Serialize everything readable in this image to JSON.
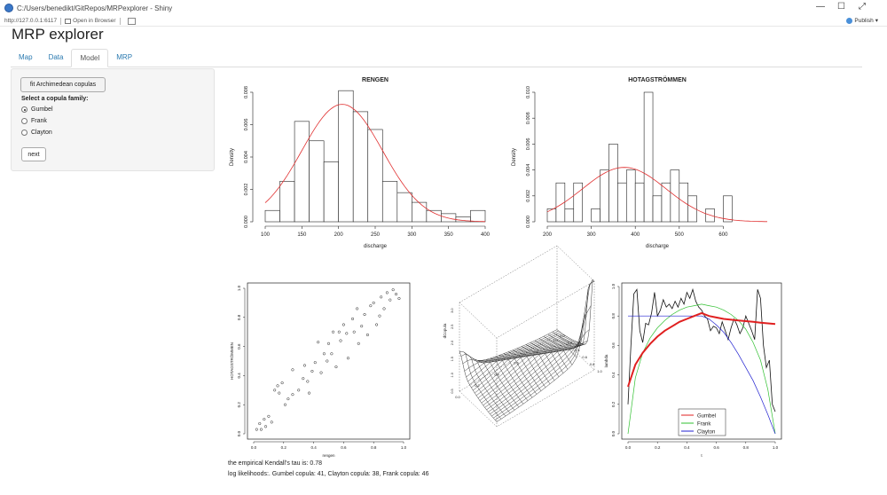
{
  "window": {
    "path": "C:/Users/benedikt/GitRepos/MRPexplorer - Shiny",
    "url": "http://127.0.0.1:6117",
    "open_in_browser": "Open in Browser",
    "publish": "Publish",
    "controls": [
      "—",
      "☐",
      "⤢"
    ]
  },
  "app": {
    "title": "MRP explorer"
  },
  "tabs": [
    {
      "label": "Map"
    },
    {
      "label": "Data"
    },
    {
      "label": "Model"
    },
    {
      "label": "MRP"
    }
  ],
  "sidebar": {
    "fit_button": "fit Archimedean copulas",
    "select_label": "Select a copula family:",
    "options": [
      "Gumbel",
      "Frank",
      "Clayton"
    ],
    "selected": "Gumbel",
    "next_button": "next"
  },
  "output": {
    "tau_text": "the empirical Kendall's tau is: 0.78",
    "loglik_text": "log likelihoods:. Gumbel copula: 41, Clayton copula: 38, Frank copula: 46"
  },
  "chart_data": [
    {
      "type": "bar",
      "title": "RENGEN",
      "xlabel": "discharge",
      "ylabel": "Density",
      "xlim": [
        100,
        400
      ],
      "ylim": [
        0,
        0.008
      ],
      "xticks": [
        100,
        150,
        200,
        250,
        300,
        350,
        400
      ],
      "yticks": [
        "0.000",
        "0.002",
        "0.004",
        "0.006",
        "0.008"
      ],
      "bin_edges": [
        100,
        120,
        140,
        160,
        180,
        200,
        220,
        240,
        260,
        280,
        300,
        320,
        340,
        360,
        380,
        400
      ],
      "values": [
        0.0007,
        0.0025,
        0.0062,
        0.005,
        0.0037,
        0.0081,
        0.0068,
        0.0057,
        0.0025,
        0.0018,
        0.0012,
        0.0007,
        0.0005,
        0.0003,
        0.0007
      ],
      "density_curve": {
        "color": "#e03030",
        "mean": 205,
        "sd": 55
      }
    },
    {
      "type": "bar",
      "title": "HOTAGSTRÖMMEN",
      "xlabel": "discharge",
      "ylabel": "Density",
      "xlim": [
        200,
        700
      ],
      "ylim": [
        0,
        0.01
      ],
      "xticks": [
        200,
        300,
        400,
        500,
        600
      ],
      "yticks": [
        "0.000",
        "0.002",
        "0.004",
        "0.006",
        "0.008",
        "0.010"
      ],
      "bin_edges": [
        200,
        220,
        240,
        260,
        280,
        300,
        320,
        340,
        360,
        380,
        400,
        420,
        440,
        460,
        480,
        500,
        520,
        540,
        560,
        580,
        600,
        620,
        640,
        660,
        680
      ],
      "values": [
        0.001,
        0.003,
        0.001,
        0.003,
        0.0,
        0.001,
        0.004,
        0.006,
        0.003,
        0.004,
        0.003,
        0.01,
        0.002,
        0.003,
        0.004,
        0.003,
        0.002,
        0.0,
        0.001,
        0.0,
        0.002,
        0.0,
        0.0,
        0.0
      ],
      "density_curve": {
        "color": "#e03030",
        "mean": 375,
        "sd": 95
      }
    },
    {
      "type": "scatter",
      "xlabel": "rengen",
      "ylabel": "HOTAGSTRÖMMEN",
      "xlim": [
        0,
        1
      ],
      "ylim": [
        0,
        1
      ],
      "xticks": [
        "0.0",
        "0.2",
        "0.4",
        "0.6",
        "0.8",
        "1.0"
      ],
      "yticks": [
        "0.0",
        "0.2",
        "0.4",
        "0.6",
        "0.8",
        "1.0"
      ],
      "points": [
        [
          0.02,
          0.03
        ],
        [
          0.04,
          0.07
        ],
        [
          0.05,
          0.03
        ],
        [
          0.07,
          0.1
        ],
        [
          0.08,
          0.05
        ],
        [
          0.1,
          0.12
        ],
        [
          0.12,
          0.08
        ],
        [
          0.14,
          0.3
        ],
        [
          0.16,
          0.33
        ],
        [
          0.17,
          0.28
        ],
        [
          0.19,
          0.35
        ],
        [
          0.21,
          0.2
        ],
        [
          0.23,
          0.24
        ],
        [
          0.26,
          0.44
        ],
        [
          0.3,
          0.3
        ],
        [
          0.33,
          0.38
        ],
        [
          0.36,
          0.36
        ],
        [
          0.37,
          0.28
        ],
        [
          0.39,
          0.43
        ],
        [
          0.41,
          0.49
        ],
        [
          0.43,
          0.63
        ],
        [
          0.45,
          0.42
        ],
        [
          0.47,
          0.55
        ],
        [
          0.49,
          0.5
        ],
        [
          0.5,
          0.62
        ],
        [
          0.52,
          0.55
        ],
        [
          0.55,
          0.46
        ],
        [
          0.57,
          0.7
        ],
        [
          0.58,
          0.64
        ],
        [
          0.6,
          0.75
        ],
        [
          0.62,
          0.69
        ],
        [
          0.63,
          0.52
        ],
        [
          0.66,
          0.79
        ],
        [
          0.67,
          0.7
        ],
        [
          0.69,
          0.86
        ],
        [
          0.7,
          0.62
        ],
        [
          0.72,
          0.74
        ],
        [
          0.74,
          0.82
        ],
        [
          0.76,
          0.68
        ],
        [
          0.78,
          0.88
        ],
        [
          0.8,
          0.9
        ],
        [
          0.82,
          0.75
        ],
        [
          0.84,
          0.81
        ],
        [
          0.85,
          0.94
        ],
        [
          0.87,
          0.86
        ],
        [
          0.89,
          0.97
        ],
        [
          0.91,
          0.92
        ],
        [
          0.93,
          0.99
        ],
        [
          0.95,
          0.96
        ],
        [
          0.97,
          0.93
        ],
        [
          0.26,
          0.27
        ],
        [
          0.34,
          0.47
        ],
        [
          0.53,
          0.7
        ]
      ]
    },
    {
      "type": "surface",
      "zlabel": "dCopula",
      "xticks": [
        "0.0",
        "0.2",
        "0.4",
        "0.6",
        "0.8",
        "1.0"
      ],
      "yticks": [
        "0.0",
        "0.2",
        "0.4",
        "0.6",
        "0.8",
        "1.0"
      ]
    },
    {
      "type": "line",
      "xlabel": "t",
      "ylabel": "lambda",
      "xlim": [
        0,
        1
      ],
      "ylim": [
        0,
        1
      ],
      "xticks": [
        "0.0",
        "0.2",
        "0.4",
        "0.6",
        "0.8",
        "1.0"
      ],
      "yticks": [
        "0.0",
        "0.2",
        "0.4",
        "0.6",
        "0.8",
        "1.0"
      ],
      "legend": {
        "placement": "bottom-center",
        "entries": [
          "Gumbel",
          "Frank",
          "Clayton"
        ]
      },
      "series": [
        {
          "name": "Gumbel",
          "color": "#e02020",
          "x": [
            0.0,
            0.05,
            0.1,
            0.15,
            0.2,
            0.25,
            0.3,
            0.35,
            0.4,
            0.45,
            0.5,
            0.55,
            0.6,
            0.65,
            0.7,
            0.75,
            0.8,
            0.85,
            0.9,
            0.95,
            1.0
          ],
          "y": [
            0.32,
            0.47,
            0.55,
            0.61,
            0.66,
            0.7,
            0.73,
            0.76,
            0.78,
            0.8,
            0.82,
            0.8,
            0.79,
            0.78,
            0.775,
            0.77,
            0.765,
            0.76,
            0.755,
            0.75,
            0.745
          ]
        },
        {
          "name": "Frank",
          "color": "#30c030",
          "x": [
            0.0,
            0.05,
            0.1,
            0.15,
            0.2,
            0.25,
            0.3,
            0.35,
            0.4,
            0.45,
            0.5,
            0.55,
            0.6,
            0.65,
            0.7,
            0.75,
            0.8,
            0.85,
            0.9,
            0.95,
            1.0
          ],
          "y": [
            0.0,
            0.38,
            0.55,
            0.65,
            0.72,
            0.77,
            0.81,
            0.84,
            0.86,
            0.87,
            0.88,
            0.87,
            0.86,
            0.84,
            0.81,
            0.77,
            0.71,
            0.62,
            0.5,
            0.3,
            0.0
          ]
        },
        {
          "name": "Clayton",
          "color": "#2020d0",
          "x": [
            0.0,
            0.05,
            0.1,
            0.15,
            0.2,
            0.25,
            0.3,
            0.35,
            0.4,
            0.45,
            0.5,
            0.55,
            0.6,
            0.65,
            0.7,
            0.75,
            0.8,
            0.85,
            0.9,
            0.95,
            1.0
          ],
          "y": [
            0.8,
            0.8,
            0.8,
            0.8,
            0.8,
            0.8,
            0.8,
            0.8,
            0.8,
            0.8,
            0.8,
            0.78,
            0.74,
            0.69,
            0.62,
            0.54,
            0.45,
            0.36,
            0.25,
            0.13,
            0.0
          ]
        },
        {
          "name": "",
          "color": "#111111",
          "x": [
            0.0,
            0.02,
            0.04,
            0.06,
            0.08,
            0.1,
            0.12,
            0.14,
            0.16,
            0.18,
            0.2,
            0.22,
            0.24,
            0.26,
            0.28,
            0.3,
            0.32,
            0.34,
            0.36,
            0.38,
            0.4,
            0.42,
            0.44,
            0.46,
            0.48,
            0.5,
            0.52,
            0.54,
            0.56,
            0.58,
            0.6,
            0.62,
            0.64,
            0.66,
            0.68,
            0.7,
            0.72,
            0.74,
            0.76,
            0.78,
            0.8,
            0.82,
            0.84,
            0.86,
            0.88,
            0.9,
            0.92,
            0.94,
            0.96,
            0.98,
            1.0
          ],
          "y": [
            0.2,
            0.6,
            0.95,
            0.98,
            0.7,
            0.62,
            0.75,
            0.74,
            0.82,
            0.96,
            0.8,
            0.84,
            0.91,
            0.86,
            0.88,
            0.85,
            0.9,
            0.86,
            0.92,
            0.88,
            0.96,
            0.92,
            0.98,
            0.9,
            0.86,
            0.84,
            0.8,
            0.78,
            0.7,
            0.73,
            0.72,
            0.68,
            0.76,
            0.7,
            0.64,
            0.72,
            0.78,
            0.74,
            0.68,
            0.72,
            0.8,
            0.75,
            0.7,
            0.64,
            0.98,
            0.92,
            0.6,
            0.45,
            0.5,
            0.2,
            0.15
          ]
        }
      ]
    }
  ]
}
